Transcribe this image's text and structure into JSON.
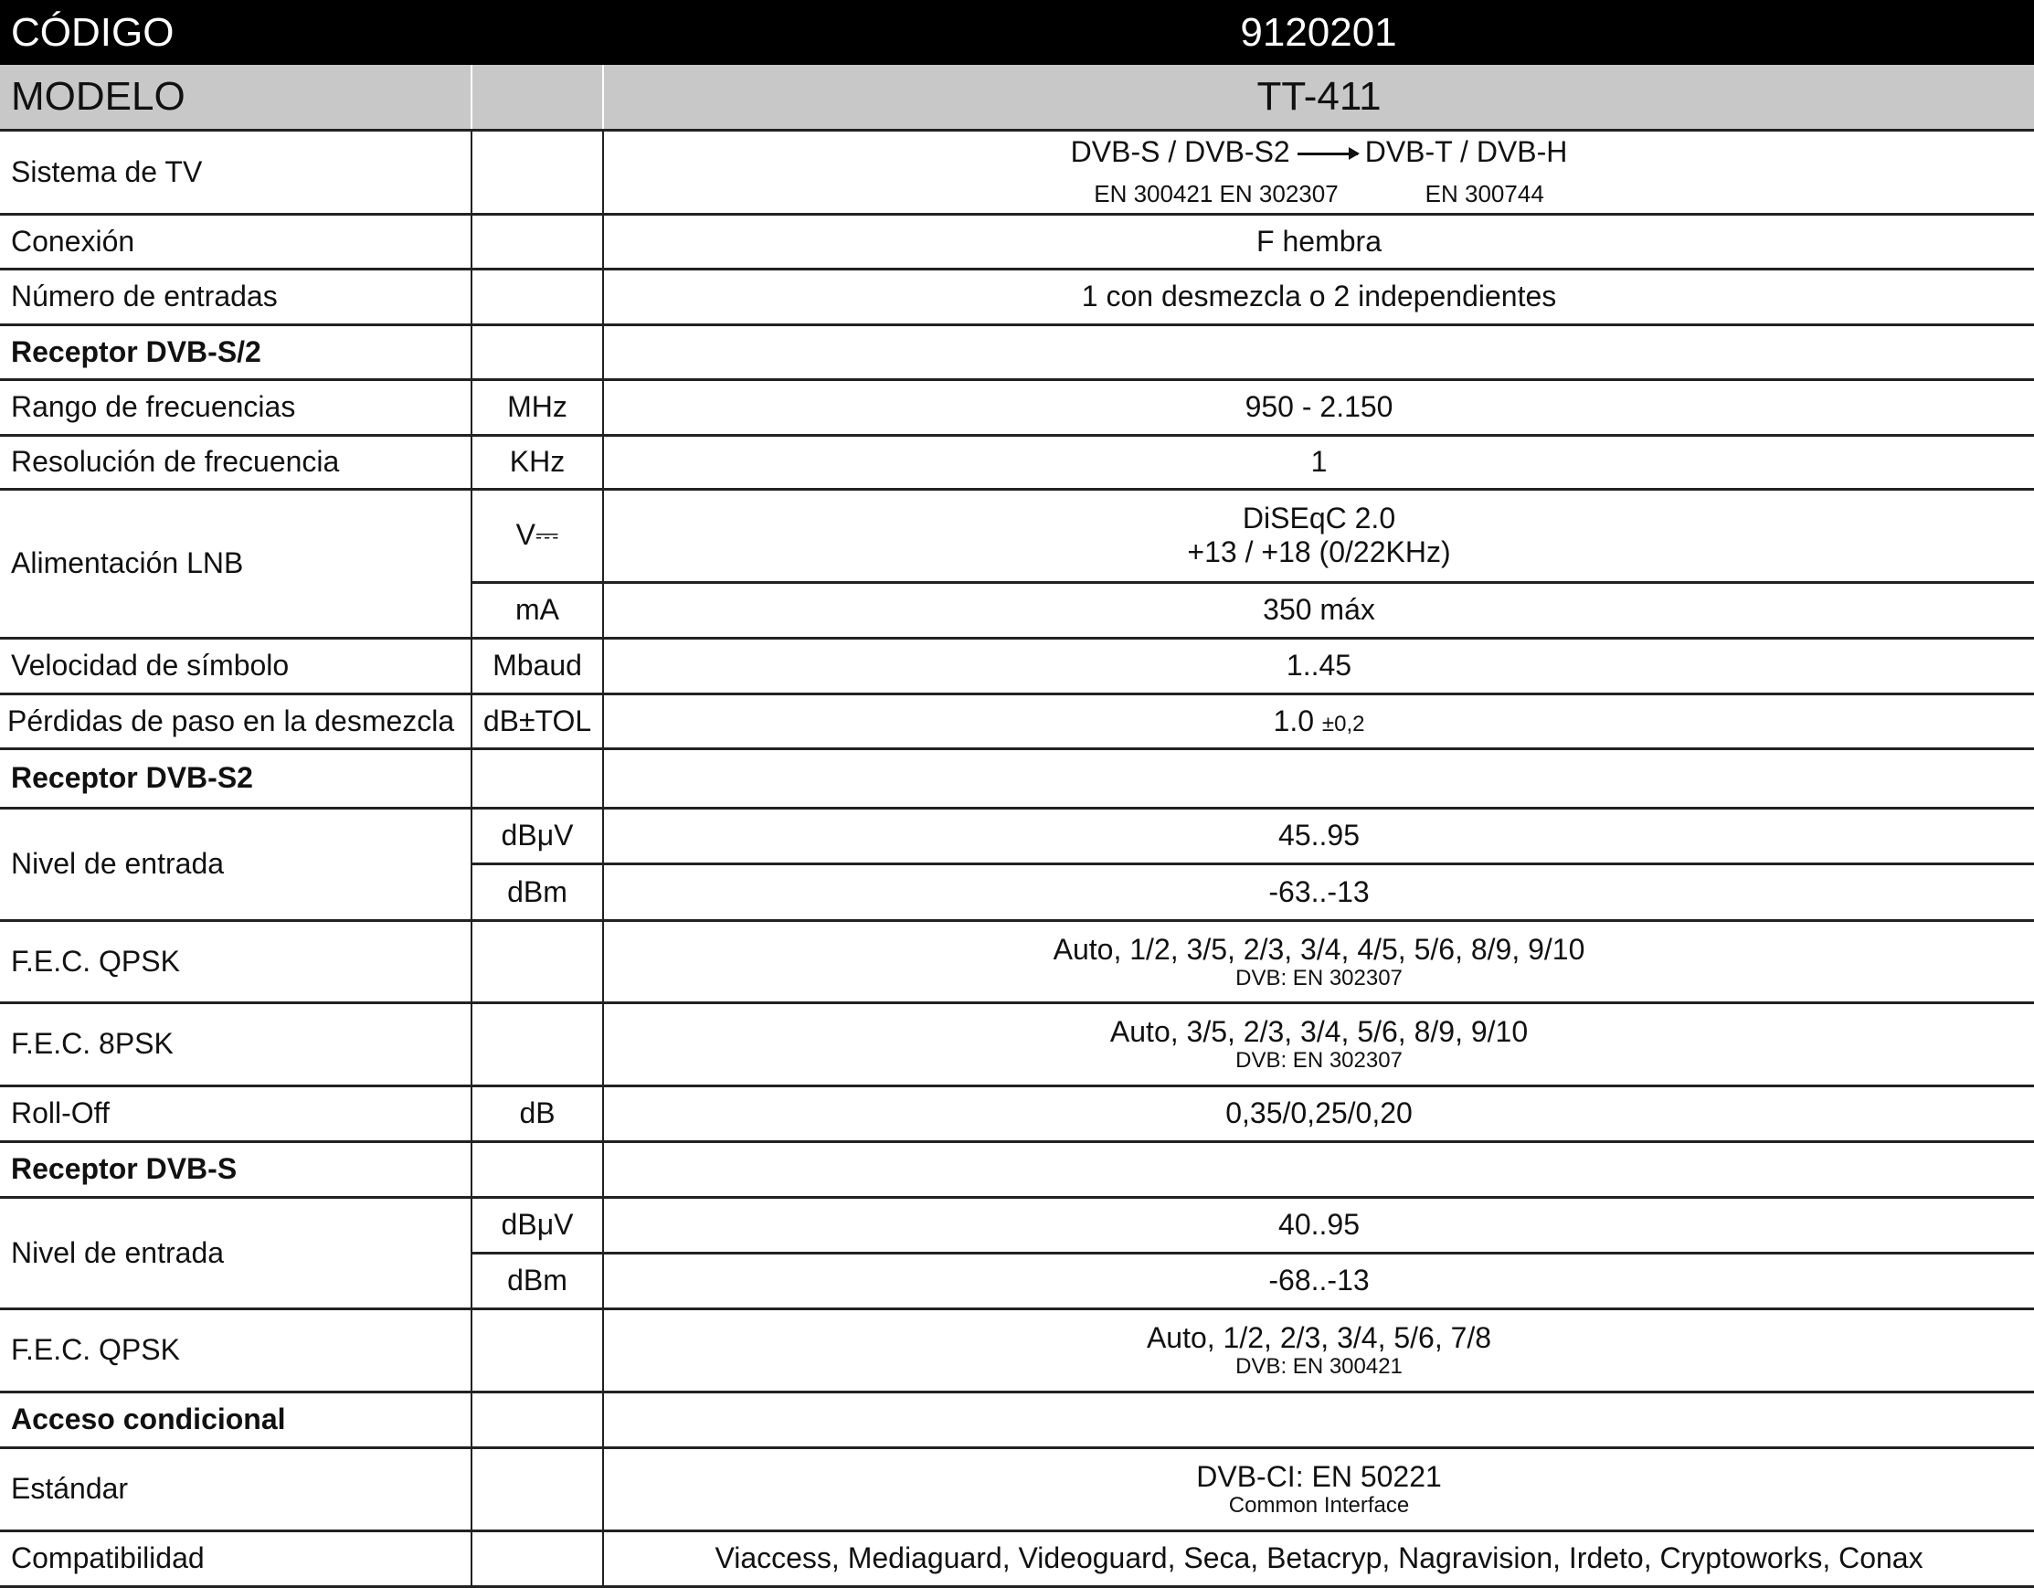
{
  "header": {
    "label": "CÓDIGO",
    "value": "9120201"
  },
  "model": {
    "label": "MODELO",
    "value": "TT-411"
  },
  "rows": {
    "sistema": {
      "label": "Sistema de TV",
      "from": "DVB-S / DVB-S2",
      "to": "DVB-T / DVB-H",
      "from_std": "EN 300421 EN 302307",
      "to_std": "EN 300744"
    },
    "conexion": {
      "label": "Conexión",
      "value": "F hembra"
    },
    "entradas": {
      "label": "Número de entradas",
      "value": "1 con desmezcla o 2 independientes"
    },
    "sec1": {
      "label": "Receptor DVB-S/2"
    },
    "rango": {
      "label": "Rango de frecuencias",
      "unit": "MHz",
      "value": "950 - 2.150"
    },
    "resolucion": {
      "label": "Resolución de frecuencia",
      "unit": "KHz",
      "value": "1"
    },
    "alimentacion": {
      "label": "Alimentación LNB",
      "unit_v": "V⎓",
      "value_v1": "DiSEqC 2.0",
      "value_v2": "+13 / +18 (0/22KHz)",
      "unit_ma": "mA",
      "value_ma": "350 máx"
    },
    "velocidad": {
      "label": "Velocidad de símbolo",
      "unit": "Mbaud",
      "value": "1..45"
    },
    "perdidas": {
      "label": "Pérdidas de paso en la desmezcla",
      "unit": "dB±TOL",
      "value": "1.0",
      "tol": "±0,2"
    },
    "sec2": {
      "label": "Receptor DVB-S2"
    },
    "nivel_s2": {
      "label": "Nivel de entrada",
      "unit1": "dBμV",
      "value1": "45..95",
      "unit2": "dBm",
      "value2": "-63..-13"
    },
    "fec_qpsk_s2": {
      "label": "F.E.C.  QPSK",
      "value": "Auto, 1/2, 3/5, 2/3, 3/4, 4/5, 5/6, 8/9, 9/10",
      "note": "DVB: EN 302307"
    },
    "fec_8psk": {
      "label": "F.E.C.  8PSK",
      "value": "Auto, 3/5, 2/3, 3/4, 5/6, 8/9, 9/10",
      "note": "DVB: EN 302307"
    },
    "rolloff": {
      "label": "Roll-Off",
      "unit": "dB",
      "value": "0,35/0,25/0,20"
    },
    "sec3": {
      "label": "Receptor DVB-S"
    },
    "nivel_s": {
      "label": "Nivel de entrada",
      "unit1": "dBμV",
      "value1": "40..95",
      "unit2": "dBm",
      "value2": "-68..-13"
    },
    "fec_qpsk_s": {
      "label": "F.E.C.  QPSK",
      "value": "Auto, 1/2, 2/3, 3/4, 5/6, 7/8",
      "note": "DVB: EN 300421"
    },
    "sec4": {
      "label": "Acceso condicional"
    },
    "estandar": {
      "label": "Estándar",
      "value": "DVB-CI: EN 50221",
      "note": "Common Interface"
    },
    "compat": {
      "label": "Compatibilidad",
      "value": "Viaccess, Mediaguard, Videoguard, Seca, Betacryp, Nagravision, Irdeto, Cryptoworks, Conax"
    }
  }
}
